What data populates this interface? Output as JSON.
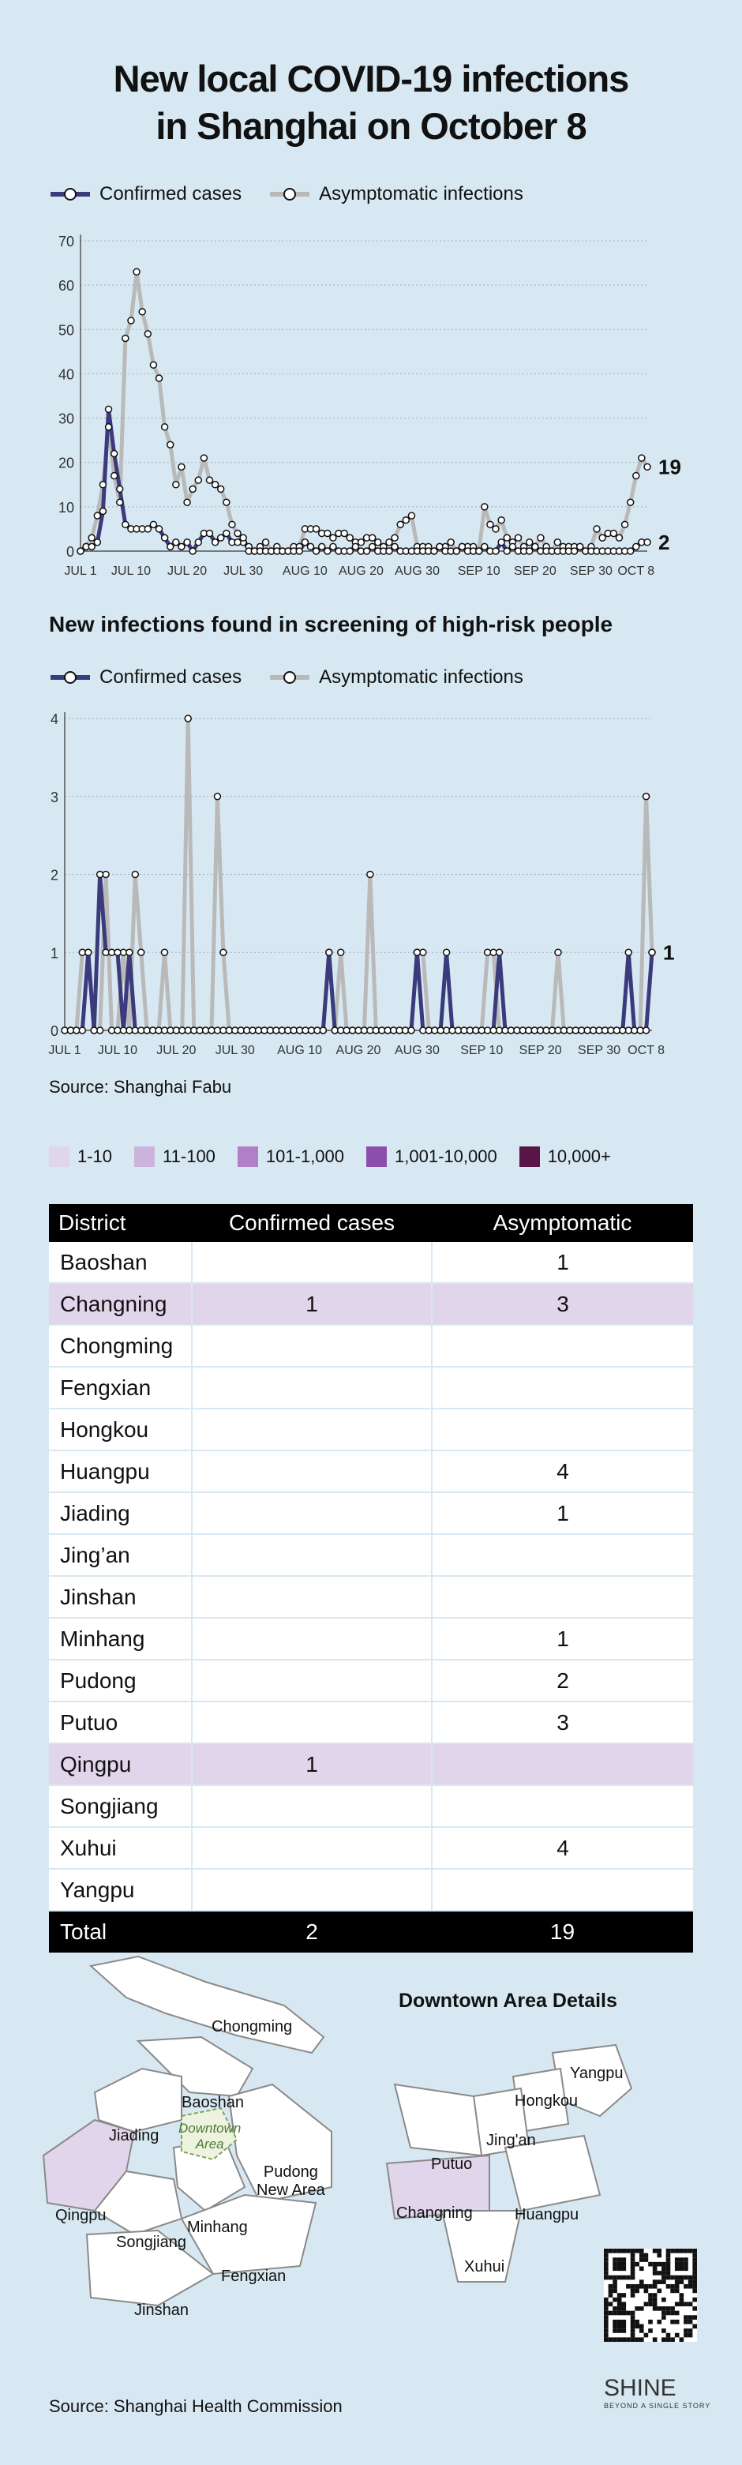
{
  "title_line1": "New local COVID-19 infections",
  "title_line2": "in Shanghai on October 8",
  "legend": {
    "confirmed": "Confirmed cases",
    "asymptomatic": "Asymptomatic infections"
  },
  "colors": {
    "confirmed": "#3b3a7c",
    "asymptomatic": "#b9b9b9",
    "background": "#d8e8f2",
    "highlight": "#e0d5ea"
  },
  "chart1": {
    "type": "line",
    "y_ticks": [
      "0",
      "10",
      "20",
      "30",
      "40",
      "50",
      "60",
      "70"
    ],
    "ylim": [
      0,
      70
    ],
    "x_ticks": [
      {
        "day": 1,
        "label": "JUL 1"
      },
      {
        "day": 10,
        "label": "JUL 10"
      },
      {
        "day": 20,
        "label": "JUL 20"
      },
      {
        "day": 30,
        "label": "JUL 30"
      },
      {
        "day": 41,
        "label": "AUG 10"
      },
      {
        "day": 51,
        "label": "AUG 20"
      },
      {
        "day": 61,
        "label": "AUG 30"
      },
      {
        "day": 72,
        "label": "SEP 10"
      },
      {
        "day": 82,
        "label": "SEP 20"
      },
      {
        "day": 92,
        "label": "SEP 30"
      },
      {
        "day": 100,
        "label": "OCT 8"
      }
    ],
    "end_labels": {
      "asymptomatic": "19",
      "confirmed": "2"
    },
    "asymptomatic": [
      0,
      1,
      3,
      8,
      15,
      28,
      17,
      11,
      48,
      52,
      63,
      54,
      49,
      42,
      39,
      28,
      24,
      15,
      19,
      11,
      14,
      16,
      21,
      16,
      15,
      14,
      11,
      6,
      4,
      2,
      1,
      0,
      1,
      2,
      0,
      1,
      0,
      0,
      1,
      1,
      5,
      5,
      5,
      4,
      4,
      3,
      4,
      4,
      3,
      2,
      2,
      3,
      3,
      2,
      1,
      2,
      3,
      6,
      7,
      8,
      1,
      1,
      1,
      0,
      1,
      1,
      2,
      0,
      1,
      1,
      1,
      0,
      10,
      6,
      5,
      7,
      3,
      2,
      3,
      1,
      2,
      1,
      3,
      1,
      0,
      2,
      1,
      1,
      1,
      1,
      0,
      1,
      5,
      3,
      4,
      4,
      3,
      6,
      11,
      17,
      21,
      19
    ],
    "confirmed": [
      0,
      1,
      1,
      2,
      9,
      32,
      22,
      14,
      6,
      5,
      5,
      5,
      5,
      6,
      5,
      3,
      1,
      2,
      1,
      2,
      0,
      2,
      4,
      4,
      2,
      3,
      4,
      2,
      2,
      3,
      0,
      0,
      0,
      0,
      0,
      0,
      0,
      0,
      0,
      0,
      2,
      1,
      0,
      1,
      0,
      1,
      0,
      0,
      0,
      1,
      0,
      0,
      1,
      0,
      0,
      0,
      1,
      0,
      0,
      0,
      0,
      0,
      0,
      0,
      1,
      0,
      0,
      0,
      1,
      0,
      0,
      0,
      1,
      0,
      0,
      2,
      0,
      1,
      0,
      0,
      0,
      1,
      0,
      0,
      0,
      0,
      0,
      0,
      0,
      1,
      0,
      0,
      0,
      0,
      0,
      0,
      0,
      0,
      0,
      1,
      2,
      2
    ]
  },
  "chart2": {
    "subtitle": "New infections found in screening of high-risk people",
    "type": "line",
    "y_ticks": [
      "0",
      "1",
      "2",
      "3",
      "4"
    ],
    "ylim": [
      0,
      4
    ],
    "x_ticks": [
      {
        "day": 1,
        "label": "JUL 1"
      },
      {
        "day": 10,
        "label": "JUL 10"
      },
      {
        "day": 20,
        "label": "JUL 20"
      },
      {
        "day": 30,
        "label": "JUL 30"
      },
      {
        "day": 41,
        "label": "AUG 10"
      },
      {
        "day": 51,
        "label": "AUG 20"
      },
      {
        "day": 61,
        "label": "AUG 30"
      },
      {
        "day": 72,
        "label": "SEP 10"
      },
      {
        "day": 82,
        "label": "SEP 20"
      },
      {
        "day": 92,
        "label": "SEP 30"
      },
      {
        "day": 100,
        "label": "OCT 8"
      }
    ],
    "end_labels": {
      "asymptomatic": "1",
      "confirmed": "1"
    },
    "asymptomatic": [
      0,
      0,
      0,
      1,
      1,
      0,
      0,
      2,
      0,
      0,
      1,
      0,
      2,
      1,
      0,
      0,
      0,
      1,
      0,
      0,
      0,
      4,
      0,
      0,
      0,
      0,
      3,
      1,
      0,
      0,
      0,
      0,
      0,
      0,
      0,
      0,
      0,
      0,
      0,
      0,
      0,
      0,
      0,
      0,
      0,
      1,
      0,
      1,
      0,
      0,
      0,
      0,
      2,
      0,
      0,
      0,
      0,
      0,
      0,
      0,
      1,
      1,
      0,
      0,
      0,
      0,
      0,
      0,
      0,
      0,
      0,
      0,
      1,
      1,
      0,
      0,
      0,
      0,
      0,
      0,
      0,
      0,
      0,
      0,
      1,
      0,
      0,
      0,
      0,
      0,
      0,
      0,
      0,
      0,
      0,
      0,
      0,
      0,
      0,
      3,
      1
    ],
    "confirmed": [
      0,
      0,
      0,
      0,
      1,
      0,
      2,
      1,
      1,
      1,
      0,
      1,
      0,
      0,
      0,
      0,
      0,
      0,
      0,
      0,
      0,
      0,
      0,
      0,
      0,
      0,
      0,
      0,
      0,
      0,
      0,
      0,
      0,
      0,
      0,
      0,
      0,
      0,
      0,
      0,
      0,
      0,
      0,
      0,
      0,
      1,
      0,
      0,
      0,
      0,
      0,
      0,
      0,
      0,
      0,
      0,
      0,
      0,
      0,
      0,
      1,
      0,
      0,
      0,
      0,
      1,
      0,
      0,
      0,
      0,
      0,
      0,
      0,
      0,
      1,
      0,
      0,
      0,
      0,
      0,
      0,
      0,
      0,
      0,
      0,
      0,
      0,
      0,
      0,
      0,
      0,
      0,
      0,
      0,
      0,
      0,
      1,
      0,
      0,
      0,
      1
    ]
  },
  "source1": "Source: Shanghai Fabu",
  "color_keys": [
    {
      "label": "1-10",
      "color": "#e0d5ea"
    },
    {
      "label": "11-100",
      "color": "#ccb3dc"
    },
    {
      "label": "101-1,000",
      "color": "#b07fc7"
    },
    {
      "label": "1,001-10,000",
      "color": "#8a4fab"
    },
    {
      "label": "10,000+",
      "color": "#5a1548"
    }
  ],
  "table": {
    "headers": [
      "District",
      "Confirmed cases",
      "Asymptomatic"
    ],
    "rows": [
      {
        "district": "Baoshan",
        "confirmed": "",
        "asymptomatic": "1"
      },
      {
        "district": "Changning",
        "confirmed": "1",
        "asymptomatic": "3"
      },
      {
        "district": "Chongming",
        "confirmed": "",
        "asymptomatic": ""
      },
      {
        "district": "Fengxian",
        "confirmed": "",
        "asymptomatic": ""
      },
      {
        "district": "Hongkou",
        "confirmed": "",
        "asymptomatic": ""
      },
      {
        "district": "Huangpu",
        "confirmed": "",
        "asymptomatic": "4"
      },
      {
        "district": "Jiading",
        "confirmed": "",
        "asymptomatic": "1"
      },
      {
        "district": "Jing’an",
        "confirmed": "",
        "asymptomatic": ""
      },
      {
        "district": "Jinshan",
        "confirmed": "",
        "asymptomatic": ""
      },
      {
        "district": "Minhang",
        "confirmed": "",
        "asymptomatic": "1"
      },
      {
        "district": "Pudong",
        "confirmed": "",
        "asymptomatic": "2"
      },
      {
        "district": "Putuo",
        "confirmed": "",
        "asymptomatic": "3"
      },
      {
        "district": "Qingpu",
        "confirmed": "1",
        "asymptomatic": ""
      },
      {
        "district": "Songjiang",
        "confirmed": "",
        "asymptomatic": ""
      },
      {
        "district": "Xuhui",
        "confirmed": "",
        "asymptomatic": "4"
      },
      {
        "district": "Yangpu",
        "confirmed": "",
        "asymptomatic": ""
      }
    ],
    "highlight_rows": [
      1,
      12
    ],
    "total": {
      "label": "Total",
      "confirmed": "2",
      "asymptomatic": "19"
    }
  },
  "map": {
    "downtown_title": "Downtown Area Details",
    "labels": {
      "chongming": "Chongming",
      "baoshan": "Baoshan",
      "jiading": "Jiading",
      "downtown": "Downtown\nArea",
      "pudong": "Pudong\nNew Area",
      "qingpu": "Qingpu",
      "songjiang": "Songjiang",
      "minhang": "Minhang",
      "fengxian": "Fengxian",
      "jinshan": "Jinshan",
      "yangpu": "Yangpu",
      "hongkou": "Hongkou",
      "jingan": "Jing'an",
      "putuo": "Putuo",
      "changning": "Changning",
      "huangpu": "Huangpu",
      "xuhui": "Xuhui"
    }
  },
  "source2": "Source: Shanghai Health Commission",
  "brand": {
    "name": "SHINE",
    "tagline": "BEYOND A SINGLE STORY"
  }
}
